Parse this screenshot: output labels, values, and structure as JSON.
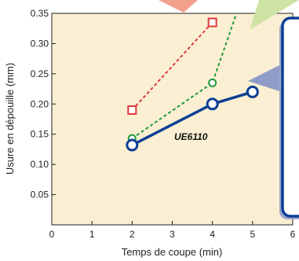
{
  "chart_data": {
    "type": "line",
    "xlabel": "Temps de coupe (min)",
    "ylabel": "Usure en dépouille  (mm)",
    "xlim": [
      0,
      6
    ],
    "ylim": [
      0,
      0.35
    ],
    "x_ticks": [
      "0",
      "1",
      "2",
      "3",
      "4",
      "5",
      "6"
    ],
    "y_ticks": [
      "0.05",
      "0.10",
      "0.15",
      "0.20",
      "0.25",
      "0.30",
      "0.35"
    ],
    "grid": false,
    "series": [
      {
        "name": "UE6110",
        "style": "solid",
        "marker": "circle",
        "color": "#0d3f94",
        "x": [
          2,
          4,
          5
        ],
        "y": [
          0.132,
          0.2,
          0.22
        ]
      },
      {
        "name": "",
        "style": "dashed",
        "marker": "circle",
        "color": "#1f9a3a",
        "x": [
          2,
          4,
          4.6
        ],
        "y": [
          0.143,
          0.235,
          0.35
        ]
      },
      {
        "name": "",
        "style": "dashed",
        "marker": "square",
        "color": "#e0383b",
        "x": [
          2,
          4
        ],
        "y": [
          0.19,
          0.335
        ]
      }
    ],
    "colors": {
      "plot_background": "#faefd2",
      "callout_border": "#0d3f94",
      "callout_pointer": "#8f9cc8",
      "red_callout": "#f2a08a",
      "green_callout": "#cfe3a5"
    }
  }
}
